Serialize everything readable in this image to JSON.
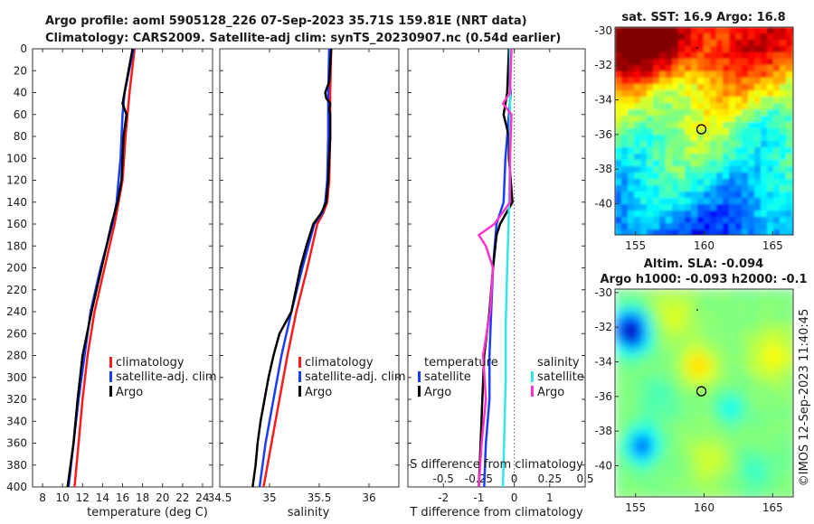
{
  "header": {
    "line1": "Argo profile: aoml 5905128_226 07-Sep-2023 35.71S 159.81E (NRT data)",
    "line2": "Climatology: CARS2009. Satellite-adj clim: synTS_20230907.nc (0.54d earlier)"
  },
  "colors": {
    "climatology": "#ff1a1a",
    "satellite": "#1a3cff",
    "argo": "#000000",
    "sal_satellite": "#33e6e6",
    "sal_argo": "#ff33cc"
  },
  "chart_data": [
    {
      "id": "temperature",
      "type": "line",
      "xlabel": "temperature (deg C)",
      "xlim": [
        7,
        25
      ],
      "ylim": [
        0,
        400
      ],
      "xticks": [
        8,
        10,
        12,
        14,
        16,
        18,
        20,
        22,
        24
      ],
      "yticks": [
        0,
        20,
        40,
        60,
        80,
        100,
        120,
        140,
        160,
        180,
        200,
        220,
        240,
        260,
        280,
        300,
        320,
        340,
        360,
        380,
        400
      ],
      "legend": [
        "climatology",
        "satellite-adj. clim",
        "Argo"
      ],
      "series": [
        {
          "name": "climatology",
          "depth": [
            0,
            40,
            80,
            120,
            160,
            200,
            240,
            280,
            320,
            360,
            400
          ],
          "values": [
            17.2,
            16.7,
            16.3,
            16.0,
            15.2,
            14.2,
            13.2,
            12.5,
            12.0,
            11.6,
            11.2
          ]
        },
        {
          "name": "satellite-adj. clim",
          "depth": [
            0,
            40,
            60,
            100,
            140,
            160,
            200,
            240,
            280,
            320,
            360,
            400
          ],
          "values": [
            17.1,
            16.2,
            16.0,
            15.8,
            15.4,
            15.0,
            13.8,
            12.8,
            12.2,
            11.6,
            11.1,
            10.6
          ]
        },
        {
          "name": "Argo",
          "depth": [
            0,
            20,
            40,
            50,
            60,
            80,
            100,
            120,
            140,
            160,
            180,
            200,
            240,
            280,
            320,
            360,
            380,
            400
          ],
          "values": [
            17.0,
            16.6,
            16.2,
            16.0,
            16.4,
            16.1,
            16.0,
            15.9,
            15.5,
            14.9,
            14.4,
            13.9,
            12.9,
            12.0,
            11.5,
            11.1,
            10.8,
            10.5
          ]
        }
      ]
    },
    {
      "id": "salinity",
      "type": "line",
      "xlabel": "salinity",
      "xlim": [
        34.5,
        36.3
      ],
      "ylim": [
        0,
        400
      ],
      "xticks": [
        34.5,
        35,
        35.5,
        36
      ],
      "xticklabels": [
        "34.5",
        "35",
        "35.5",
        "36"
      ],
      "legend": [
        "climatology",
        "satellite-adj. clim",
        "Argo"
      ],
      "series": [
        {
          "name": "climatology",
          "depth": [
            0,
            40,
            80,
            120,
            140,
            150,
            160,
            200,
            240,
            280,
            320,
            360,
            400
          ],
          "values": [
            35.62,
            35.61,
            35.61,
            35.6,
            35.58,
            35.54,
            35.48,
            35.38,
            35.27,
            35.18,
            35.1,
            35.02,
            34.94
          ]
        },
        {
          "name": "satellite-adj. clim",
          "depth": [
            0,
            40,
            80,
            120,
            140,
            150,
            160,
            200,
            240,
            280,
            320,
            360,
            400
          ],
          "values": [
            35.6,
            35.59,
            35.59,
            35.58,
            35.56,
            35.53,
            35.45,
            35.33,
            35.22,
            35.12,
            35.04,
            34.96,
            34.9
          ]
        },
        {
          "name": "Argo",
          "depth": [
            0,
            30,
            40,
            45,
            50,
            55,
            60,
            80,
            100,
            120,
            140,
            150,
            160,
            180,
            200,
            240,
            260,
            280,
            300,
            320,
            340,
            360,
            380,
            400
          ],
          "values": [
            35.62,
            35.6,
            35.56,
            35.57,
            35.61,
            35.6,
            35.61,
            35.61,
            35.6,
            35.59,
            35.57,
            35.52,
            35.44,
            35.37,
            35.31,
            35.22,
            35.1,
            35.04,
            34.99,
            34.95,
            34.91,
            34.88,
            34.86,
            34.83
          ]
        }
      ]
    },
    {
      "id": "difference",
      "type": "line",
      "xlabel": "T difference from climatology",
      "xlabel_top": "S difference from climatology",
      "xlim": [
        -3,
        2
      ],
      "ylim": [
        0,
        400
      ],
      "xticks": [
        -2,
        -1,
        0,
        1
      ],
      "xticklabels": [
        "-2",
        "-1",
        "0",
        "1"
      ],
      "sticks_labels": [
        "-0.5",
        "-0.25",
        "0",
        "0.25",
        "0.5"
      ],
      "legend_t_title": "temperature",
      "legend_s_title": "salinity",
      "legend_t": [
        "satellite",
        "Argo"
      ],
      "legend_s": [
        "satellite",
        "Argo"
      ],
      "series": [
        {
          "name": "T satellite",
          "depth": [
            0,
            20,
            40,
            60,
            80,
            100,
            140,
            160,
            180,
            200,
            240,
            280,
            320,
            360,
            400
          ],
          "values": [
            -0.1,
            -0.15,
            -0.1,
            -0.15,
            -0.2,
            -0.25,
            -0.3,
            -0.5,
            -0.55,
            -0.6,
            -0.65,
            -0.7,
            -0.7,
            -0.8,
            -0.85
          ]
        },
        {
          "name": "T Argo",
          "depth": [
            0,
            40,
            60,
            80,
            100,
            120,
            140,
            160,
            170,
            200,
            240,
            280,
            320,
            360,
            400
          ],
          "values": [
            -0.15,
            -0.2,
            -0.3,
            -0.15,
            -0.15,
            -0.1,
            -0.05,
            -0.4,
            -0.5,
            -0.6,
            -0.7,
            -0.85,
            -0.9,
            -0.95,
            -1.0
          ]
        },
        {
          "name": "S satellite",
          "depth": [
            0,
            100,
            160,
            200,
            250,
            300,
            350,
            400
          ],
          "values": [
            -0.03,
            -0.03,
            -0.04,
            -0.05,
            -0.06,
            -0.06,
            -0.07,
            -0.08
          ]
        },
        {
          "name": "S Argo",
          "depth": [
            0,
            40,
            50,
            60,
            100,
            140,
            160,
            170,
            180,
            200,
            240,
            280,
            320,
            360,
            400
          ],
          "values": [
            -0.02,
            -0.03,
            -0.08,
            -0.02,
            -0.03,
            -0.03,
            -0.14,
            -0.25,
            -0.2,
            -0.15,
            -0.17,
            -0.22,
            -0.2,
            -0.23,
            -0.25
          ]
        }
      ]
    },
    {
      "id": "sst_map",
      "type": "heatmap",
      "title": "sat. SST: 16.9 Argo: 16.8",
      "xticks": [
        155,
        160,
        165
      ],
      "yticks": [
        -30,
        -32,
        -34,
        -36,
        -38,
        -40
      ],
      "xlim": [
        153.5,
        166.5
      ],
      "ylim": [
        -41.8,
        -29.8
      ],
      "marker": {
        "lon": 159.8,
        "lat": -35.7
      }
    },
    {
      "id": "sla_map",
      "type": "heatmap",
      "title": "Altim. SLA: -0.094",
      "subtitle": "Argo h1000: -0.093 h2000: -0.1",
      "xticks": [
        155,
        160,
        165
      ],
      "yticks": [
        -30,
        -32,
        -34,
        -36,
        -38,
        -40
      ],
      "xlim": [
        153.5,
        166.5
      ],
      "ylim": [
        -41.8,
        -29.8
      ],
      "marker": {
        "lon": 159.8,
        "lat": -35.7
      }
    }
  ],
  "footer": {
    "credit": "©IMOS 12-Sep-2023 11:40:45"
  }
}
